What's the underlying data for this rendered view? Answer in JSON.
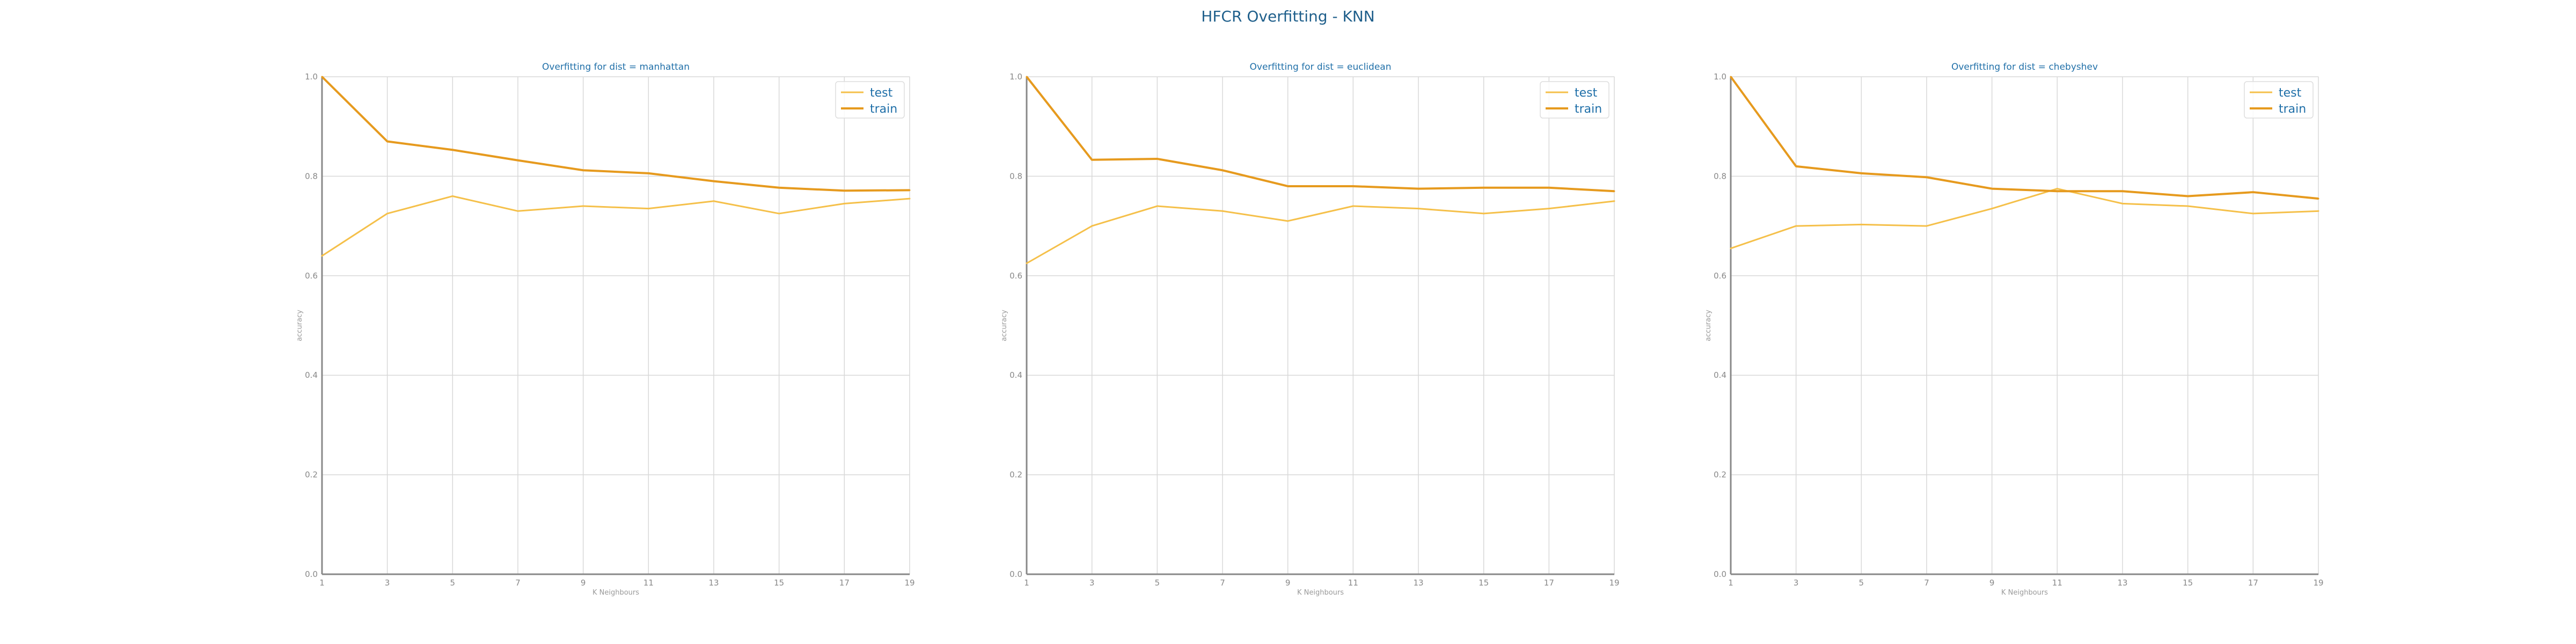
{
  "suptitle": "HFCR Overfitting - KNN",
  "colors": {
    "test": "#f5c04a",
    "train": "#e69a1e",
    "title": "#1f6fa8",
    "grid": "#d8d8d8",
    "axis": "#888888"
  },
  "chart_data": [
    {
      "type": "line",
      "title": "Overfitting for dist = manhattan",
      "xlabel": "K Neighbours",
      "ylabel": "accuracy",
      "x": [
        1,
        3,
        5,
        7,
        9,
        11,
        13,
        15,
        17,
        19
      ],
      "ylim": [
        0.0,
        1.0
      ],
      "yticks": [
        "0.0",
        "0.2",
        "0.4",
        "0.6",
        "0.8",
        "1.0"
      ],
      "grid": true,
      "legend": "top-right",
      "series": [
        {
          "name": "test",
          "values": [
            0.64,
            0.725,
            0.76,
            0.73,
            0.74,
            0.735,
            0.75,
            0.725,
            0.745,
            0.755
          ]
        },
        {
          "name": "train",
          "values": [
            1.0,
            0.87,
            0.853,
            0.832,
            0.812,
            0.806,
            0.79,
            0.777,
            0.771,
            0.772
          ]
        }
      ]
    },
    {
      "type": "line",
      "title": "Overfitting for dist = euclidean",
      "xlabel": "K Neighbours",
      "ylabel": "accuracy",
      "x": [
        1,
        3,
        5,
        7,
        9,
        11,
        13,
        15,
        17,
        19
      ],
      "ylim": [
        0.0,
        1.0
      ],
      "yticks": [
        "0.0",
        "0.2",
        "0.4",
        "0.6",
        "0.8",
        "1.0"
      ],
      "grid": true,
      "legend": "top-right",
      "series": [
        {
          "name": "test",
          "values": [
            0.625,
            0.7,
            0.74,
            0.73,
            0.71,
            0.74,
            0.735,
            0.725,
            0.735,
            0.75
          ]
        },
        {
          "name": "train",
          "values": [
            1.0,
            0.833,
            0.835,
            0.812,
            0.78,
            0.78,
            0.775,
            0.777,
            0.777,
            0.77
          ]
        }
      ]
    },
    {
      "type": "line",
      "title": "Overfitting for dist = chebyshev",
      "xlabel": "K Neighbours",
      "ylabel": "accuracy",
      "x": [
        1,
        3,
        5,
        7,
        9,
        11,
        13,
        15,
        17,
        19
      ],
      "ylim": [
        0.0,
        1.0
      ],
      "yticks": [
        "0.0",
        "0.2",
        "0.4",
        "0.6",
        "0.8",
        "1.0"
      ],
      "grid": true,
      "legend": "top-right",
      "series": [
        {
          "name": "test",
          "values": [
            0.655,
            0.7,
            0.703,
            0.7,
            0.735,
            0.775,
            0.745,
            0.74,
            0.725,
            0.73
          ]
        },
        {
          "name": "train",
          "values": [
            1.0,
            0.82,
            0.806,
            0.798,
            0.775,
            0.77,
            0.77,
            0.76,
            0.768,
            0.755
          ]
        }
      ]
    }
  ]
}
